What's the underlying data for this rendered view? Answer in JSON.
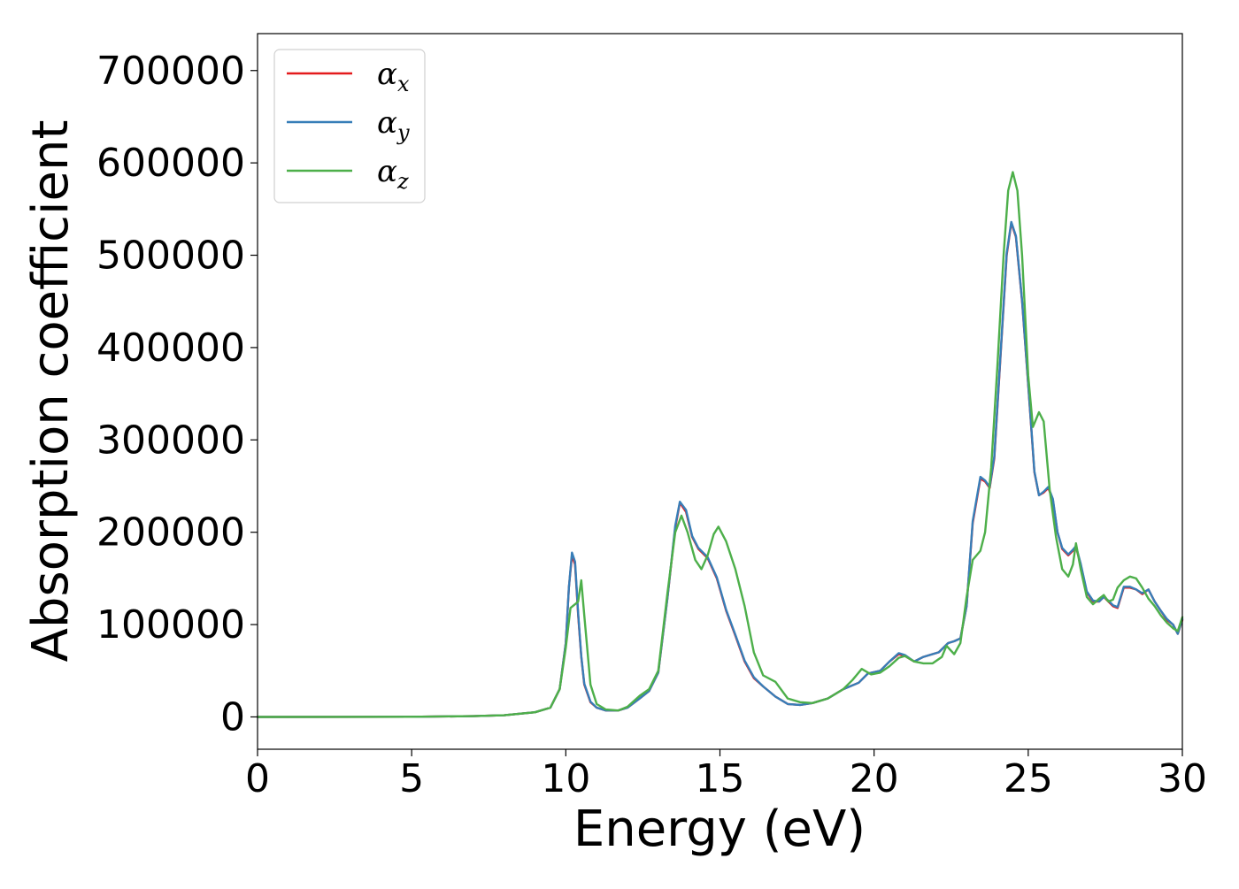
{
  "chart_data": {
    "type": "line",
    "title": "",
    "xlabel": "Energy (eV)",
    "ylabel": "Absorption coefficient",
    "xlim": [
      0,
      30
    ],
    "ylim": [
      -35000,
      740000
    ],
    "xticks": [
      0,
      5,
      10,
      15,
      20,
      25,
      30
    ],
    "yticks": [
      0,
      100000,
      200000,
      300000,
      400000,
      500000,
      600000,
      700000
    ],
    "grid": false,
    "legend": "top-left",
    "series": [
      {
        "name": "αx",
        "symbol": "α",
        "subscript": "x",
        "color": "#e41a1c",
        "x": [
          0,
          5,
          7,
          8,
          9,
          9.5,
          9.8,
          10.0,
          10.1,
          10.2,
          10.3,
          10.4,
          10.5,
          10.6,
          10.8,
          11.0,
          11.3,
          11.7,
          12.0,
          12.4,
          12.7,
          13.0,
          13.3,
          13.55,
          13.7,
          13.9,
          14.1,
          14.3,
          14.6,
          14.9,
          15.2,
          15.5,
          15.8,
          16.1,
          16.4,
          16.8,
          17.2,
          17.6,
          18.0,
          18.5,
          19.0,
          19.5,
          19.8,
          20.2,
          20.5,
          20.8,
          21.0,
          21.3,
          21.6,
          21.8,
          22.1,
          22.4,
          22.6,
          22.8,
          23.0,
          23.2,
          23.45,
          23.6,
          23.75,
          23.9,
          24.1,
          24.3,
          24.45,
          24.6,
          24.8,
          25.0,
          25.2,
          25.35,
          25.5,
          25.65,
          25.8,
          25.95,
          26.1,
          26.3,
          26.45,
          26.55,
          26.7,
          26.9,
          27.1,
          27.3,
          27.45,
          27.6,
          27.75,
          27.9,
          28.1,
          28.3,
          28.5,
          28.7,
          28.9,
          29.1,
          29.3,
          29.5,
          29.7,
          29.85,
          30.0
        ],
        "y": [
          0,
          200,
          800,
          1800,
          5000,
          10000,
          30000,
          80000,
          140000,
          175000,
          165000,
          110000,
          65000,
          35000,
          16000,
          10000,
          7000,
          7000,
          10000,
          20000,
          28000,
          48000,
          130000,
          205000,
          232000,
          222000,
          195000,
          182000,
          172000,
          150000,
          115000,
          88000,
          60000,
          42000,
          33000,
          22000,
          14000,
          13000,
          15000,
          20000,
          30000,
          37000,
          47000,
          50000,
          60000,
          68000,
          66000,
          60000,
          65000,
          67000,
          70000,
          80000,
          82000,
          85000,
          120000,
          210000,
          258000,
          255000,
          248000,
          280000,
          390000,
          500000,
          535000,
          520000,
          450000,
          360000,
          265000,
          240000,
          243000,
          248000,
          235000,
          200000,
          182000,
          175000,
          180000,
          184000,
          165000,
          135000,
          125000,
          125000,
          130000,
          125000,
          120000,
          118000,
          140000,
          140000,
          138000,
          133000,
          138000,
          125000,
          115000,
          105000,
          100000,
          90000,
          105000
        ]
      },
      {
        "name": "αy",
        "symbol": "α",
        "subscript": "y",
        "color": "#377eb8",
        "x": [
          0,
          5,
          7,
          8,
          9,
          9.5,
          9.8,
          10.0,
          10.1,
          10.2,
          10.3,
          10.4,
          10.5,
          10.6,
          10.8,
          11.0,
          11.3,
          11.7,
          12.0,
          12.4,
          12.7,
          13.0,
          13.3,
          13.55,
          13.7,
          13.9,
          14.1,
          14.3,
          14.6,
          14.9,
          15.2,
          15.5,
          15.8,
          16.1,
          16.4,
          16.8,
          17.2,
          17.6,
          18.0,
          18.5,
          19.0,
          19.5,
          19.8,
          20.2,
          20.5,
          20.8,
          21.0,
          21.3,
          21.6,
          21.8,
          22.1,
          22.4,
          22.6,
          22.8,
          23.0,
          23.2,
          23.45,
          23.6,
          23.75,
          23.9,
          24.1,
          24.3,
          24.45,
          24.6,
          24.8,
          25.0,
          25.2,
          25.35,
          25.5,
          25.65,
          25.8,
          25.95,
          26.1,
          26.3,
          26.45,
          26.55,
          26.7,
          26.9,
          27.1,
          27.3,
          27.45,
          27.6,
          27.75,
          27.9,
          28.1,
          28.3,
          28.5,
          28.7,
          28.9,
          29.1,
          29.3,
          29.5,
          29.7,
          29.85,
          30.0
        ],
        "y": [
          0,
          200,
          800,
          1800,
          5000,
          10000,
          30000,
          80000,
          140000,
          178000,
          168000,
          112000,
          66000,
          36000,
          16500,
          10000,
          7000,
          7000,
          10000,
          20000,
          28000,
          48000,
          130000,
          207000,
          233000,
          224000,
          196000,
          183000,
          173000,
          151000,
          116000,
          89000,
          61000,
          43000,
          33000,
          22000,
          14000,
          13000,
          15000,
          20000,
          30000,
          37000,
          47000,
          50000,
          60000,
          69000,
          67000,
          60000,
          65000,
          67000,
          70000,
          80000,
          82000,
          85000,
          120000,
          212000,
          260000,
          256000,
          249000,
          282000,
          392000,
          502000,
          536000,
          521000,
          451000,
          361000,
          266000,
          240000,
          244000,
          249000,
          236000,
          200000,
          183000,
          176000,
          181000,
          185000,
          166000,
          136000,
          126000,
          125000,
          130000,
          126000,
          121000,
          119000,
          141000,
          141000,
          138000,
          134000,
          138000,
          125000,
          115000,
          106000,
          100000,
          90000,
          106000
        ]
      },
      {
        "name": "αz",
        "symbol": "α",
        "subscript": "z",
        "color": "#4daf4a",
        "x": [
          0,
          5,
          7,
          8,
          9,
          9.5,
          9.8,
          10.0,
          10.15,
          10.3,
          10.4,
          10.5,
          10.6,
          10.8,
          11.0,
          11.3,
          11.7,
          12.0,
          12.4,
          12.7,
          13.0,
          13.3,
          13.55,
          13.75,
          13.95,
          14.2,
          14.4,
          14.6,
          14.8,
          14.95,
          15.2,
          15.5,
          15.8,
          16.1,
          16.4,
          16.8,
          17.2,
          17.6,
          18.0,
          18.5,
          19.0,
          19.3,
          19.6,
          19.9,
          20.2,
          20.5,
          20.8,
          21.0,
          21.3,
          21.6,
          21.9,
          22.2,
          22.35,
          22.6,
          22.8,
          23.0,
          23.2,
          23.45,
          23.6,
          23.8,
          24.0,
          24.2,
          24.35,
          24.5,
          24.65,
          24.8,
          25.0,
          25.15,
          25.35,
          25.5,
          25.7,
          25.9,
          26.1,
          26.3,
          26.45,
          26.55,
          26.7,
          26.9,
          27.1,
          27.3,
          27.45,
          27.6,
          27.75,
          27.9,
          28.1,
          28.3,
          28.5,
          28.7,
          28.9,
          29.1,
          29.3,
          29.5,
          29.7,
          29.85,
          30.0
        ],
        "y": [
          0,
          200,
          800,
          1800,
          5000,
          10000,
          30000,
          75000,
          118000,
          122000,
          125000,
          148000,
          110000,
          35000,
          14000,
          8000,
          7000,
          11000,
          23000,
          30000,
          50000,
          135000,
          200000,
          218000,
          200000,
          170000,
          160000,
          175000,
          198000,
          206000,
          190000,
          160000,
          120000,
          70000,
          45000,
          38000,
          20000,
          16000,
          15000,
          20000,
          30000,
          40000,
          52000,
          46000,
          48000,
          55000,
          64000,
          66000,
          60000,
          58000,
          58000,
          65000,
          77000,
          68000,
          80000,
          130000,
          170000,
          180000,
          200000,
          270000,
          380000,
          500000,
          570000,
          590000,
          570000,
          500000,
          370000,
          314000,
          330000,
          320000,
          245000,
          195000,
          160000,
          152000,
          165000,
          188000,
          160000,
          130000,
          122000,
          128000,
          132000,
          125000,
          127000,
          140000,
          148000,
          152000,
          150000,
          140000,
          128000,
          120000,
          110000,
          102000,
          96000,
          93000,
          108000
        ]
      }
    ]
  }
}
